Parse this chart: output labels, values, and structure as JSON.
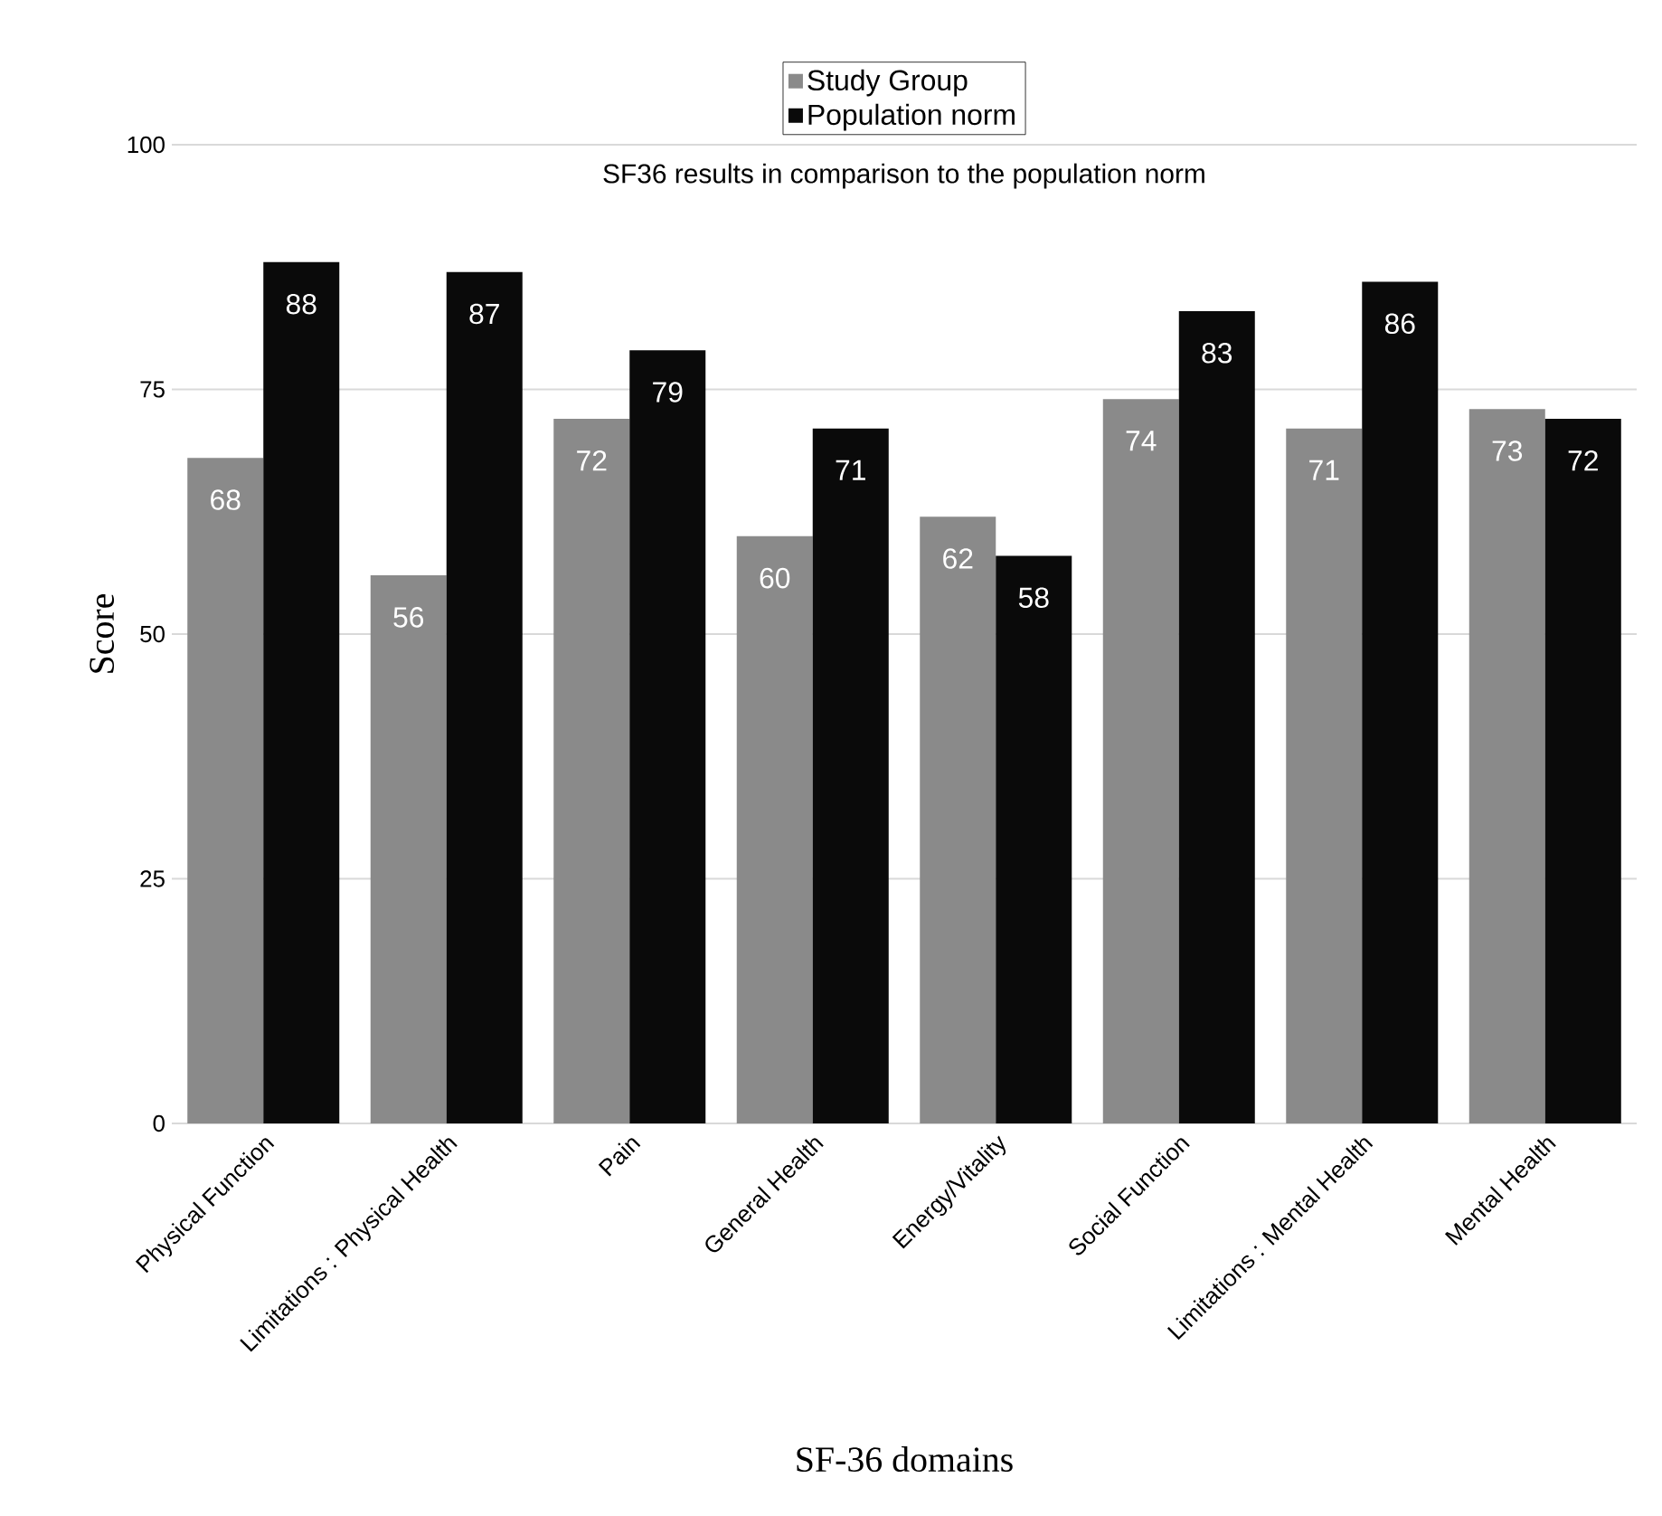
{
  "chart_data": {
    "type": "bar",
    "title": "SF36 results in comparison to the population norm",
    "xlabel": "SF-36 domains",
    "ylabel": "Score",
    "categories": [
      "Physical Function",
      "Limitations : Physical Health",
      "Pain",
      "General Health",
      "Energy/Vitality",
      "Social Function",
      "Limitations : Mental Health",
      "Mental Health"
    ],
    "series": [
      {
        "name": "Study Group",
        "color": "#8a8a8a",
        "values": [
          68,
          56,
          72,
          60,
          62,
          74,
          71,
          73
        ]
      },
      {
        "name": "Population norm",
        "color": "#0a0a0a",
        "values": [
          88,
          87,
          79,
          71,
          58,
          83,
          86,
          72
        ]
      }
    ],
    "ylim": [
      0,
      100
    ],
    "yticks": [
      0,
      25,
      50,
      75,
      100
    ],
    "grid": "y",
    "legend": "top",
    "data_labels": true
  }
}
